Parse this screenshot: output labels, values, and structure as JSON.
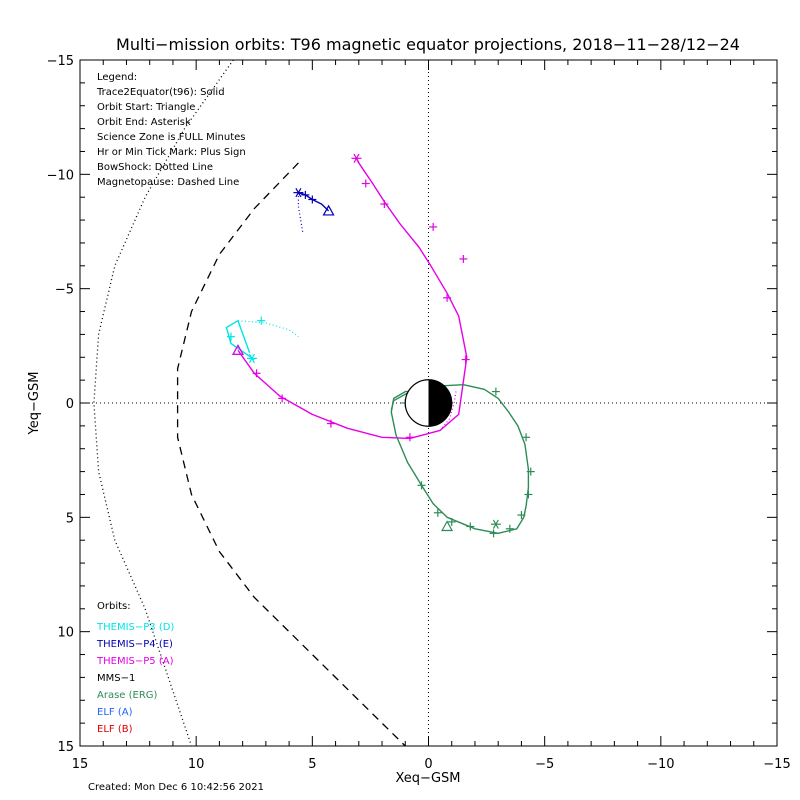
{
  "chart_data": {
    "type": "line",
    "title": "Multi−mission orbits: T96 magnetic equator projections, 2018−11−28/12−24",
    "xlabel": "Xeq−GSM",
    "ylabel": "Yeq−GSM",
    "xlim": [
      15,
      -15
    ],
    "ylim": [
      -15,
      15
    ],
    "x_ticks": [
      {
        "value": 15,
        "label": "15"
      },
      {
        "value": 10,
        "label": "10"
      },
      {
        "value": 5,
        "label": "5"
      },
      {
        "value": 0,
        "label": "0"
      },
      {
        "value": -5,
        "label": "−5"
      },
      {
        "value": -10,
        "label": "−10"
      },
      {
        "value": -15,
        "label": "−15"
      }
    ],
    "y_ticks": [
      {
        "value": -15,
        "label": "−15"
      },
      {
        "value": -10,
        "label": "−10"
      },
      {
        "value": -5,
        "label": "−5"
      },
      {
        "value": 0,
        "label": "0"
      },
      {
        "value": 5,
        "label": "5"
      },
      {
        "value": 10,
        "label": "10"
      },
      {
        "value": 15,
        "label": "15"
      }
    ],
    "grid": false,
    "zero_lines": "dotted",
    "legend_lines": [
      "Legend:",
      "Trace2Equator(t96): Solid",
      "Orbit Start: Triangle",
      "Orbit End: Asterisk",
      "Science Zone is FULL Minutes",
      "Hr or Min Tick Mark: Plus Sign",
      "BowShock: Dotted Line",
      "Magnetopause: Dashed Line"
    ],
    "orbits_heading": "Orbits:",
    "orbit_legend": [
      {
        "name": "THEMIS−P3 (D)",
        "color": "#00e5e5"
      },
      {
        "name": "THEMIS−P4 (E)",
        "color": "#0000b4"
      },
      {
        "name": "THEMIS−P5 (A)",
        "color": "#e600e6"
      },
      {
        "name": "MMS−1",
        "color": "#000000"
      },
      {
        "name": "Arase (ERG)",
        "color": "#2e8b57"
      },
      {
        "name": "ELF (A)",
        "color": "#1e64ff"
      },
      {
        "name": "ELF (B)",
        "color": "#dc0000"
      }
    ],
    "series": [
      {
        "name": "BowShock",
        "color": "#000000",
        "style": "dotted",
        "x": [
          8.4,
          10.5,
          12.2,
          13.5,
          14.2,
          14.4,
          14.2,
          13.5,
          12.2,
          10.2
        ],
        "y": [
          -15,
          -12,
          -9,
          -6,
          -3,
          0,
          3,
          6,
          9,
          15
        ]
      },
      {
        "name": "Magnetopause",
        "color": "#000000",
        "style": "dashed",
        "x": [
          5.6,
          7.5,
          9.0,
          10.2,
          10.8,
          10.8,
          10.2,
          9.0,
          7.5,
          5.5,
          3.8,
          2.2,
          1.0
        ],
        "y": [
          -10.5,
          -8.5,
          -6.5,
          -4.0,
          -1.5,
          1.5,
          4.0,
          6.5,
          8.5,
          10.5,
          12.2,
          13.8,
          15
        ]
      },
      {
        "name": "THEMIS−P3 (D)",
        "color": "#00e5e5",
        "solid": {
          "x": [
            7.5,
            8.5,
            8.7,
            8.2,
            7.7
          ],
          "y": [
            -1.9,
            -2.6,
            -3.3,
            -3.6,
            -2.2
          ]
        },
        "dotted": {
          "x": [
            8.2,
            7.0,
            6.0,
            5.6
          ],
          "y": [
            -3.6,
            -3.5,
            -3.2,
            -2.9
          ]
        },
        "start": {
          "x": 8.2,
          "y": -2.3
        },
        "end": {
          "x": 7.6,
          "y": -1.95
        },
        "ticks": {
          "x": [
            8.5,
            7.2
          ],
          "y": [
            -2.9,
            -3.6
          ]
        }
      },
      {
        "name": "THEMIS−P4 (E)",
        "color": "#0000b4",
        "solid": {
          "x": [
            5.6,
            5.3,
            5.0,
            4.6,
            4.3
          ],
          "y": [
            -9.2,
            -9.1,
            -8.9,
            -8.7,
            -8.4
          ]
        },
        "dotted": {
          "x": [
            5.6,
            5.6,
            5.5,
            5.4
          ],
          "y": [
            -9.2,
            -8.6,
            -8.0,
            -7.4
          ]
        },
        "start": {
          "x": 4.3,
          "y": -8.4
        },
        "end": {
          "x": 5.6,
          "y": -9.2
        },
        "ticks": {
          "x": [
            5.3,
            5.0
          ],
          "y": [
            -9.1,
            -8.9
          ]
        }
      },
      {
        "name": "THEMIS−P5 (A)",
        "color": "#e600e6",
        "solid": {
          "x": [
            8.2,
            7.5,
            6.4,
            5.0,
            3.5,
            2.0,
            0.8,
            -0.5,
            -1.3,
            -1.65,
            -1.3,
            -0.8,
            -0.1,
            0.4,
            1.2,
            1.9,
            2.4,
            2.8,
            3.0,
            3.1
          ],
          "y": [
            -2.3,
            -1.3,
            -0.3,
            0.5,
            1.1,
            1.5,
            1.55,
            1.2,
            0.5,
            -2.0,
            -3.8,
            -4.8,
            -6.0,
            -6.8,
            -7.8,
            -8.8,
            -9.6,
            -10.2,
            -10.5,
            -10.7
          ]
        },
        "dotted": {
          "x": [
            -0.5,
            -0.9,
            -1.1,
            -1.2
          ],
          "y": [
            1.2,
            0.7,
            0.0,
            -0.6
          ]
        },
        "start": {
          "x": 8.2,
          "y": -2.3
        },
        "end": {
          "x": 3.1,
          "y": -10.7
        },
        "ticks": {
          "x": [
            7.4,
            6.3,
            4.2,
            0.8,
            -0.8,
            -1.6,
            -1.5,
            -0.2,
            1.9,
            2.7
          ],
          "y": [
            -1.3,
            -0.2,
            0.9,
            1.5,
            -4.6,
            -1.9,
            -6.3,
            -7.7,
            -8.7,
            -9.6
          ]
        }
      },
      {
        "name": "Arase (ERG)",
        "color": "#2e8b57",
        "solid": {
          "x": [
            -0.6,
            1.0,
            1.5,
            1.6,
            1.4,
            0.9,
            0.3,
            -0.2,
            -0.8,
            -2.0,
            -3.0,
            -3.8,
            -4.1,
            -4.2,
            -4.3,
            -4.3,
            -4.15,
            -3.85,
            -3.45,
            -3.0,
            -2.4,
            -1.5,
            -0.6,
            0.7,
            1.5,
            1.6
          ],
          "y": [
            -0.6,
            -0.5,
            -0.2,
            0.4,
            1.4,
            2.6,
            3.6,
            4.4,
            5.0,
            5.5,
            5.7,
            5.5,
            5.0,
            4.5,
            3.7,
            2.9,
            1.8,
            1.0,
            0.4,
            -0.2,
            -0.6,
            -0.8,
            -0.75,
            -0.55,
            -0.1,
            0.3
          ]
        },
        "start": {
          "x": -0.8,
          "y": 5.4
        },
        "end": {
          "x": -2.9,
          "y": 5.3
        },
        "ticks": {
          "x": [
            1.0,
            0.3,
            -0.4,
            -1.0,
            -1.8,
            -2.8,
            -3.5,
            -4.0,
            -4.3,
            -4.4,
            -4.2,
            -2.9
          ],
          "y": [
            0.0,
            3.6,
            4.8,
            5.2,
            5.4,
            5.7,
            5.5,
            4.9,
            4.0,
            3.0,
            1.5,
            -0.5
          ]
        }
      }
    ],
    "earth": {
      "x": 0,
      "y": 0,
      "radius": 1
    }
  },
  "footer": {
    "created": "Created: Mon Dec  6 10:42:56 2021"
  }
}
